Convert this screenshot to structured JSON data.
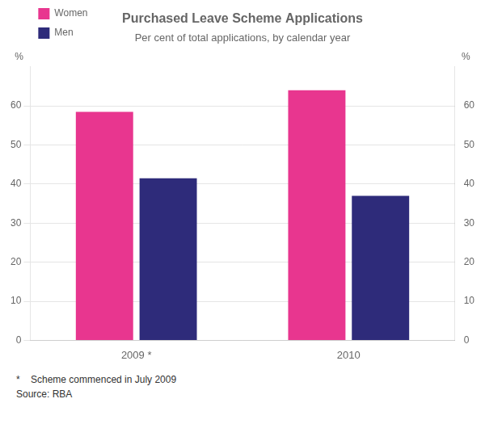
{
  "chart_data": {
    "type": "bar",
    "title": "Purchased Leave Scheme Applications",
    "subtitle": "Per cent of total applications, by calendar year",
    "categories": [
      "2009 *",
      "2010"
    ],
    "series": [
      {
        "name": "Women",
        "color": "#E8368F",
        "values": [
          58.5,
          64.0
        ]
      },
      {
        "name": "Men",
        "color": "#2E2B7A",
        "values": [
          41.5,
          37.0
        ]
      }
    ],
    "ylim": [
      0,
      70
    ],
    "yticks": [
      0,
      10,
      20,
      30,
      40,
      50,
      60
    ],
    "y2lim": [
      0,
      70
    ],
    "y2ticks": [
      0,
      10,
      20,
      30,
      40,
      50,
      60
    ],
    "ylabel": "%",
    "y2label": "%",
    "legend": "upper left",
    "grid": true,
    "annotations": [
      "*    Scheme commenced in July 2009",
      "Source: RBA"
    ]
  }
}
